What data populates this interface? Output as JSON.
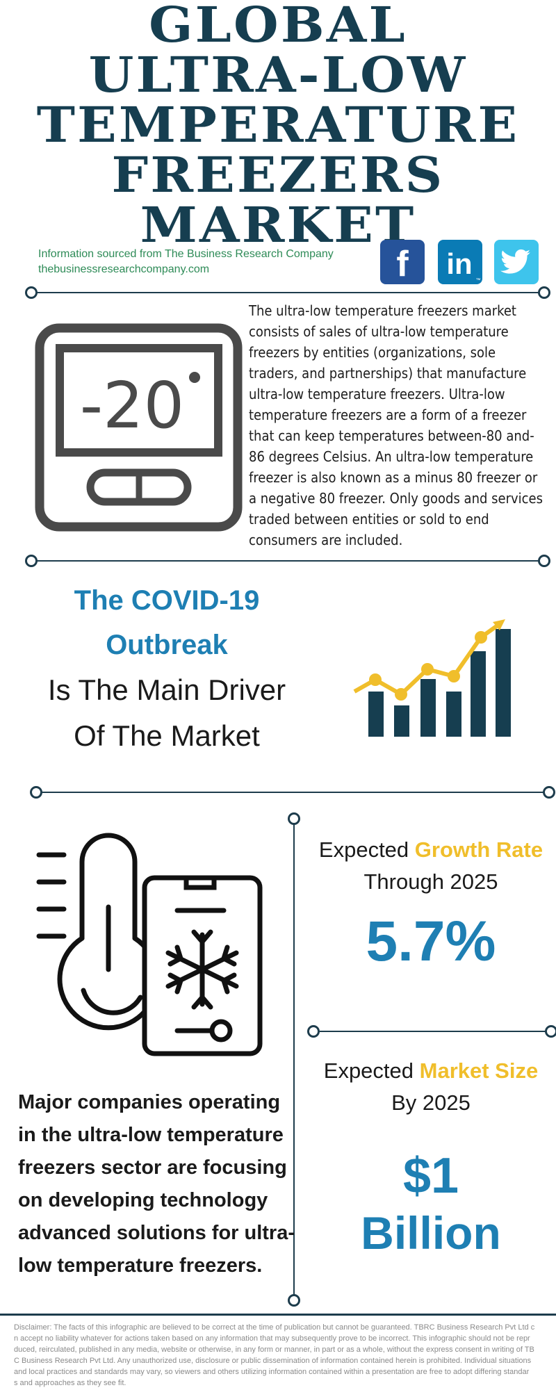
{
  "title_lines": [
    "GLOBAL",
    "ULTRA-LOW",
    "TEMPERATURE",
    "FREEZERS",
    "MARKET"
  ],
  "source": {
    "line1": "Information sourced from The Business Research Company",
    "line2": "thebusinessresearchcompany.com"
  },
  "social": {
    "facebook": "f",
    "linkedin": "in",
    "twitter": "twitter-icon",
    "linkedin_tm": "™"
  },
  "thermostat": {
    "reading": "-20",
    "degree": "°"
  },
  "description": "The ultra-low temperature freezers market consists of sales of ultra-low temperature freezers by entities (organizations, sole traders, and partnerships) that manufacture ultra-low temperature freezers. Ultra-low temperature freezers are a form of a freezer that can keep temperatures between-80 and-86 degrees Celsius. An ultra-low temperature freezer is also known as a minus 80 freezer or a negative 80 freezer. Only goods and services traded between entities or sold to end consumers are included.",
  "driver": {
    "highlight1": "The COVID-19",
    "highlight2": "Outbreak",
    "plain1": "Is The Main Driver",
    "plain2": "Of The Market"
  },
  "growth": {
    "prefix": "Expected ",
    "accent": "Growth Rate",
    "line2": "Through 2025",
    "value": "5.7%"
  },
  "market_size": {
    "prefix": "Expected ",
    "accent": "Market Size",
    "line2": "By 2025",
    "value1": "$1",
    "value2": "Billion"
  },
  "companies_text": "Major companies operating in the ultra-low temperature freezers sector are focusing on developing technology advanced solutions for ultra-low temperature freezers.",
  "disclaimer": "Disclaimer: The facts of this infographic are believed to be correct at the time of publication but cannot be guaranteed. TBRC Business Research Pvt Ltd c\nn accept no liability whatever for actions taken based on any information that may subsequently prove to be incorrect. This infographic should not be repr\nduced, reirculated, published in any media, website or otherwise, in any form or manner, in part or as a whole, without the express consent in writing of TB\nC Business Research Pvt Ltd. Any unauthorized use, disclosure or public dissemination of information contained herein is prohibited. Individual situations\nand local practices and standards may vary, so viewers and others utilizing information contained within a presentation are free to adopt differing standar\ns and approaches as they see fit.",
  "colors": {
    "navy": "#163e50",
    "blue": "#1e7fb3",
    "yellow": "#f0be2b",
    "green": "#2e8b57"
  }
}
